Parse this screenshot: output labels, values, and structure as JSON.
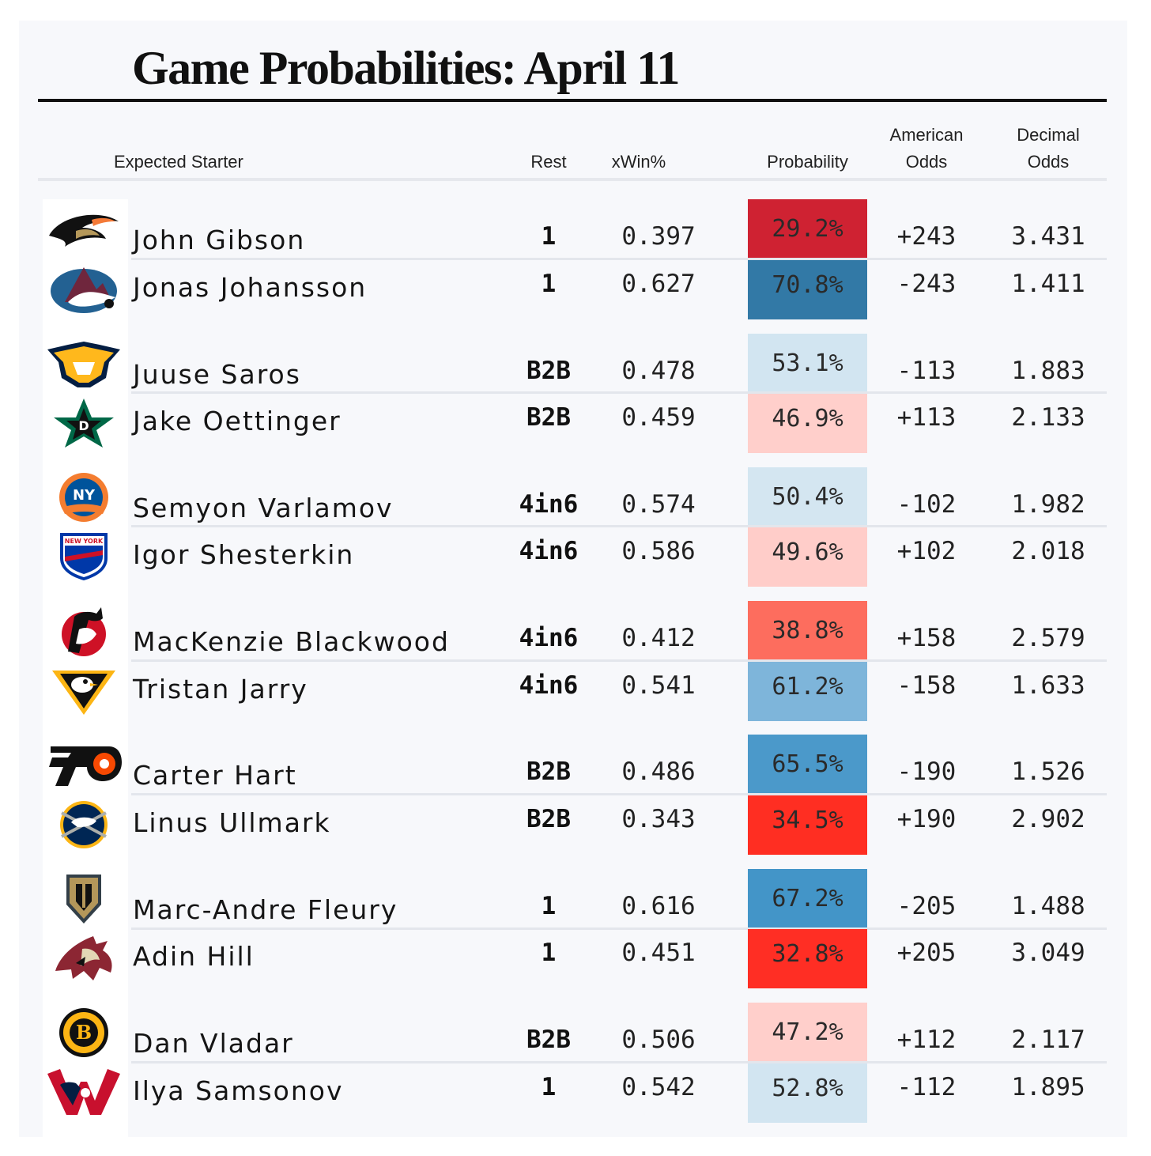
{
  "title": "Game Probabilities: April 11",
  "headers": {
    "starter": "Expected Starter",
    "rest": "Rest",
    "xwin": "xWin%",
    "probability": "Probability",
    "american1": "American",
    "american2": "Odds",
    "decimal1": "Decimal",
    "decimal2": "Odds"
  },
  "rows": [
    {
      "team_icon": "anaheim-ducks-logo",
      "name": "John Gibson",
      "rest": "1",
      "xwin": "0.397",
      "prob": "29.2%",
      "prob_color": "#cf2232",
      "american": "+243",
      "decimal": "3.431"
    },
    {
      "team_icon": "colorado-avalanche-logo",
      "name": "Jonas Johansson",
      "rest": "1",
      "xwin": "0.627",
      "prob": "70.8%",
      "prob_color": "#3279a6",
      "american": "-243",
      "decimal": "1.411"
    },
    {
      "team_icon": "nashville-predators-logo",
      "name": "Juuse Saros",
      "rest": "B2B",
      "xwin": "0.478",
      "prob": "53.1%",
      "prob_color": "#d2e5f1",
      "american": "-113",
      "decimal": "1.883"
    },
    {
      "team_icon": "dallas-stars-logo",
      "name": "Jake Oettinger",
      "rest": "B2B",
      "xwin": "0.459",
      "prob": "46.9%",
      "prob_color": "#ffcfcb",
      "american": "+113",
      "decimal": "2.133"
    },
    {
      "team_icon": "new-york-islanders-logo",
      "name": "Semyon Varlamov",
      "rest": "4in6",
      "xwin": "0.574",
      "prob": "50.4%",
      "prob_color": "#d4e6f1",
      "american": "-102",
      "decimal": "1.982"
    },
    {
      "team_icon": "new-york-rangers-logo",
      "name": "Igor Shesterkin",
      "rest": "4in6",
      "xwin": "0.586",
      "prob": "49.6%",
      "prob_color": "#ffcdc9",
      "american": "+102",
      "decimal": "2.018"
    },
    {
      "team_icon": "new-jersey-devils-logo",
      "name": "MacKenzie Blackwood",
      "rest": "4in6",
      "xwin": "0.412",
      "prob": "38.8%",
      "prob_color": "#fd6d5e",
      "american": "+158",
      "decimal": "2.579"
    },
    {
      "team_icon": "pittsburgh-penguins-logo",
      "name": "Tristan Jarry",
      "rest": "4in6",
      "xwin": "0.541",
      "prob": "61.2%",
      "prob_color": "#7eb5da",
      "american": "-158",
      "decimal": "1.633"
    },
    {
      "team_icon": "philadelphia-flyers-logo",
      "name": "Carter Hart",
      "rest": "B2B",
      "xwin": "0.486",
      "prob": "65.5%",
      "prob_color": "#4b99ca",
      "american": "-190",
      "decimal": "1.526"
    },
    {
      "team_icon": "buffalo-sabres-logo",
      "name": "Linus Ullmark",
      "rest": "B2B",
      "xwin": "0.343",
      "prob": "34.5%",
      "prob_color": "#ff2e22",
      "american": "+190",
      "decimal": "2.902"
    },
    {
      "team_icon": "vegas-golden-knights-logo",
      "name": "Marc-Andre Fleury",
      "rest": "1",
      "xwin": "0.616",
      "prob": "67.2%",
      "prob_color": "#4395c8",
      "american": "-205",
      "decimal": "1.488"
    },
    {
      "team_icon": "arizona-coyotes-logo",
      "name": "Adin Hill",
      "rest": "1",
      "xwin": "0.451",
      "prob": "32.8%",
      "prob_color": "#ff2e24",
      "american": "+205",
      "decimal": "3.049"
    },
    {
      "team_icon": "boston-bruins-logo",
      "name": "Dan Vladar",
      "rest": "B2B",
      "xwin": "0.506",
      "prob": "47.2%",
      "prob_color": "#ffcfcb",
      "american": "+112",
      "decimal": "2.117"
    },
    {
      "team_icon": "washington-capitals-logo",
      "name": "Ilya Samsonov",
      "rest": "1",
      "xwin": "0.542",
      "prob": "52.8%",
      "prob_color": "#d2e5f1",
      "american": "-112",
      "decimal": "1.895"
    }
  ]
}
